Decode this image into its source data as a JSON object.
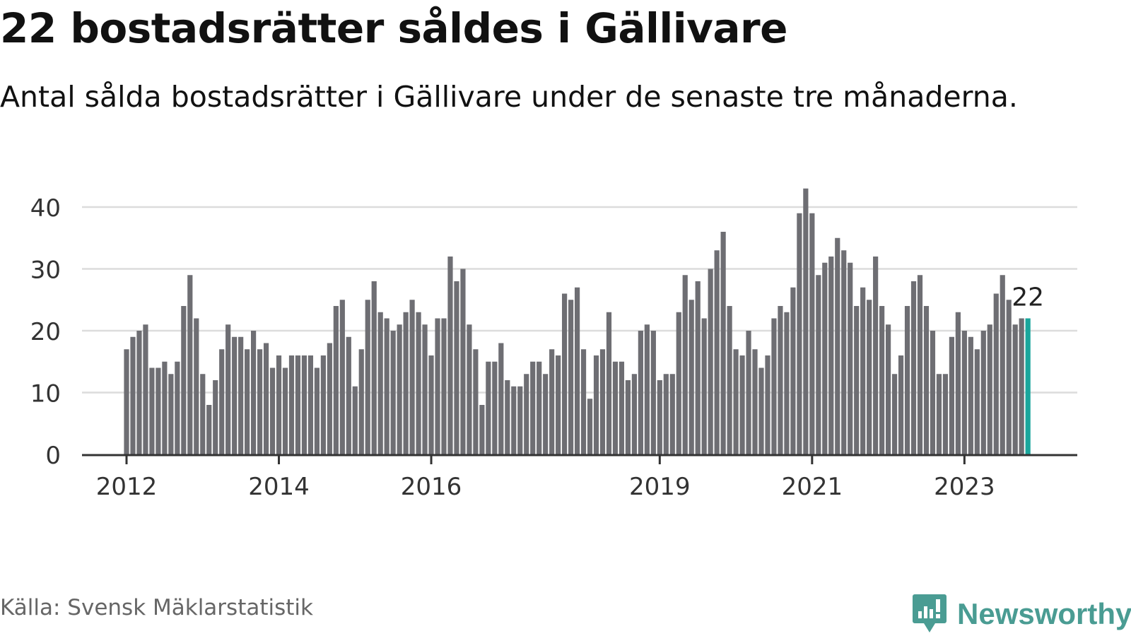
{
  "header": {
    "title": "22 bostadsrätter såldes i Gällivare",
    "subtitle": "Antal sålda bostadsrätter i Gällivare under de senaste tre månaderna."
  },
  "footer": {
    "source": "Källa: Svensk Mäklarstatistik",
    "logo_text": "Newsworthy"
  },
  "colors": {
    "bar": "#6e6e73",
    "highlight": "#1aa69c",
    "grid": "#dcdcdc",
    "axis": "#333333",
    "brand": "#4a9c93"
  },
  "chart_data": {
    "type": "bar",
    "title": "22 bostadsrätter såldes i Gällivare",
    "subtitle": "Antal sålda bostadsrätter i Gällivare under de senaste tre månaderna.",
    "xlabel": "",
    "ylabel": "",
    "ylim": [
      0,
      43
    ],
    "yticks": [
      0,
      10,
      20,
      30,
      40
    ],
    "grid": true,
    "x_tick_labels": [
      {
        "label": "2012",
        "index": 0
      },
      {
        "label": "2014",
        "index": 24
      },
      {
        "label": "2016",
        "index": 48
      },
      {
        "label": "2019",
        "index": 84
      },
      {
        "label": "2021",
        "index": 108
      },
      {
        "label": "2023",
        "index": 132
      }
    ],
    "values": [
      17,
      19,
      20,
      21,
      14,
      14,
      15,
      13,
      15,
      24,
      29,
      22,
      13,
      8,
      12,
      17,
      21,
      19,
      19,
      17,
      20,
      17,
      18,
      14,
      16,
      14,
      16,
      16,
      16,
      16,
      14,
      16,
      18,
      24,
      25,
      19,
      11,
      17,
      25,
      28,
      23,
      22,
      20,
      21,
      23,
      25,
      23,
      21,
      16,
      22,
      22,
      32,
      28,
      30,
      21,
      17,
      8,
      15,
      15,
      18,
      12,
      11,
      11,
      13,
      15,
      15,
      13,
      17,
      16,
      26,
      25,
      27,
      17,
      9,
      16,
      17,
      23,
      15,
      15,
      12,
      13,
      20,
      21,
      20,
      12,
      13,
      13,
      23,
      29,
      25,
      28,
      22,
      30,
      33,
      36,
      24,
      17,
      16,
      20,
      17,
      14,
      16,
      22,
      24,
      23,
      27,
      39,
      43,
      39,
      29,
      31,
      32,
      35,
      33,
      31,
      24,
      27,
      25,
      32,
      24,
      21,
      13,
      16,
      24,
      28,
      29,
      24,
      20,
      13,
      13,
      19,
      23,
      20,
      19,
      17,
      20,
      21,
      26,
      29,
      25,
      21,
      22,
      22
    ],
    "highlight_label": "22"
  }
}
